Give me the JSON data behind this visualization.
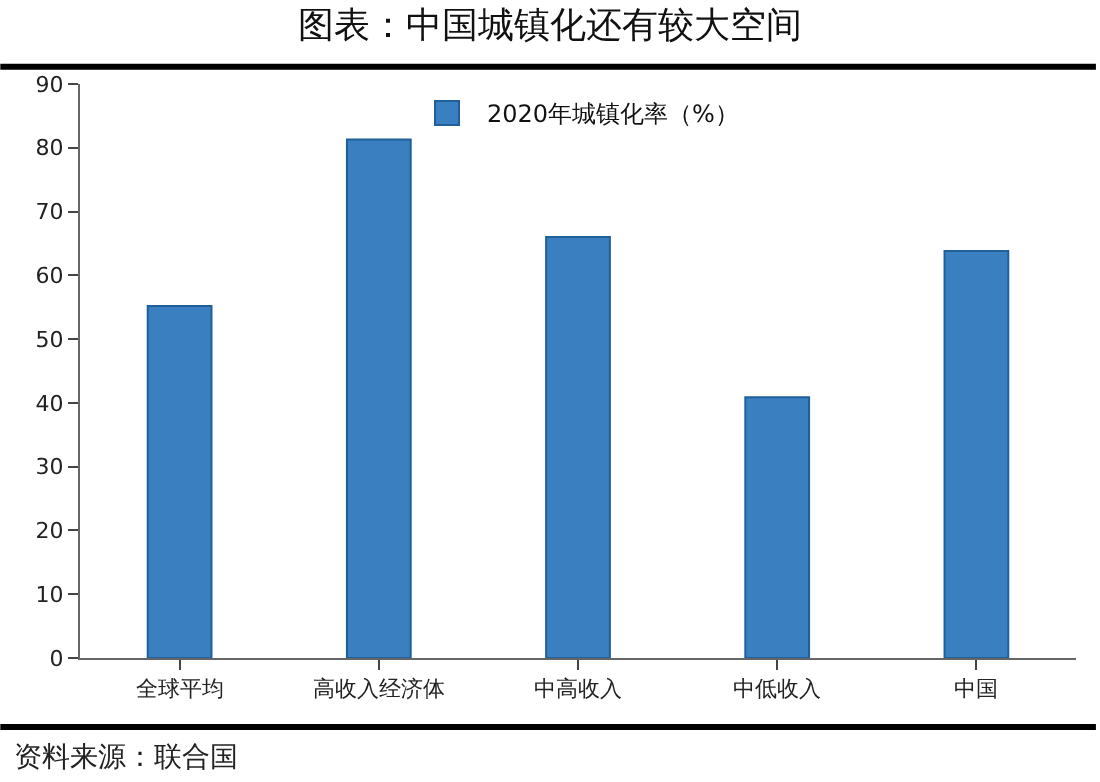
{
  "chart_data": {
    "type": "bar",
    "title": "图表：中国城镇化还有较大空间",
    "categories": [
      "全球平均",
      "高收入经济体",
      "中高收入",
      "中低收入",
      "中国"
    ],
    "series": [
      {
        "name": "2020年城镇化率（%）",
        "color": "#3a80c0",
        "values": [
          55.2,
          81.3,
          66.0,
          40.9,
          63.8
        ]
      }
    ],
    "ylim": [
      0,
      90
    ],
    "yticks": [
      0,
      10,
      20,
      30,
      40,
      50,
      60,
      70,
      80,
      90
    ],
    "legend": "top",
    "annotations": [
      "资料来源：联合国"
    ]
  }
}
